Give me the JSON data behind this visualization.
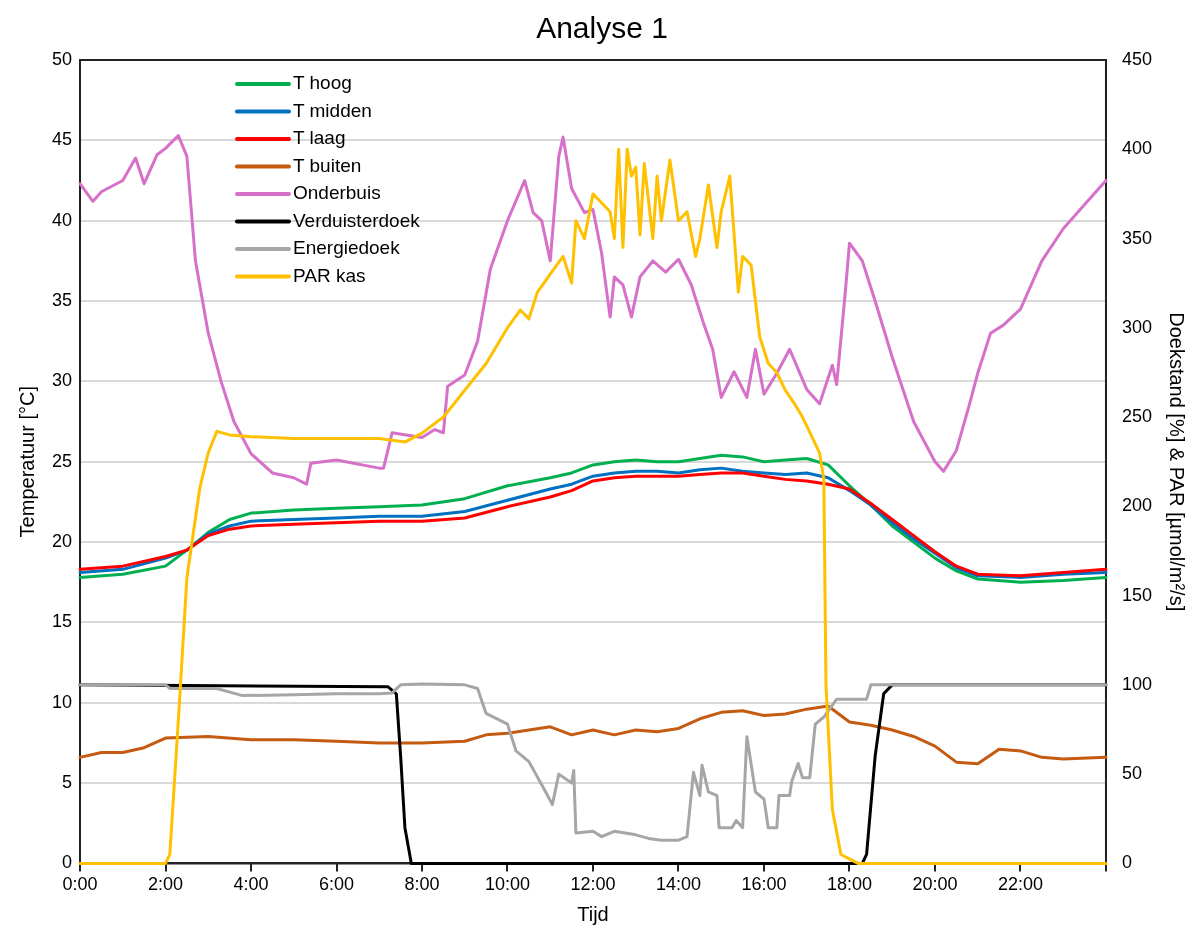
{
  "chart_data": {
    "type": "line",
    "title": "Analyse 1",
    "xlabel": "Tijd",
    "ylabel": "Temperatuur [°C]",
    "y2label": "Doekstand [%] & PAR [µmol/m²/s]",
    "xlim": [
      0,
      24
    ],
    "xticks": [
      {
        "value": 0,
        "label": "0:00"
      },
      {
        "value": 2,
        "label": "2:00"
      },
      {
        "value": 4,
        "label": "4:00"
      },
      {
        "value": 6,
        "label": "6:00"
      },
      {
        "value": 8,
        "label": "8:00"
      },
      {
        "value": 10,
        "label": "10:00"
      },
      {
        "value": 12,
        "label": "12:00"
      },
      {
        "value": 14,
        "label": "14:00"
      },
      {
        "value": 16,
        "label": "16:00"
      },
      {
        "value": 18,
        "label": "18:00"
      },
      {
        "value": 20,
        "label": "20:00"
      },
      {
        "value": 22,
        "label": "22:00"
      },
      {
        "value": 24,
        "label": null
      }
    ],
    "ylim": [
      0,
      50
    ],
    "yticks": [
      0,
      5,
      10,
      15,
      20,
      25,
      30,
      35,
      40,
      45,
      50
    ],
    "y2lim": [
      0,
      450
    ],
    "y2ticks": [
      0,
      50,
      100,
      150,
      200,
      250,
      300,
      350,
      400,
      450
    ],
    "grid": "y",
    "legend": "top left",
    "marker": "none",
    "line_style": "solid",
    "series": [
      {
        "name": "T hoog",
        "color": "#00b050",
        "x": [
          0,
          1,
          2,
          2.5,
          3,
          3.5,
          4,
          5,
          6,
          7,
          8,
          9,
          10,
          11,
          11.5,
          12,
          12.5,
          13,
          13.5,
          14,
          14.5,
          15,
          15.5,
          16,
          16.5,
          17,
          17.5,
          18,
          18.5,
          19,
          19.5,
          20,
          20.5,
          21,
          22,
          23,
          24
        ],
        "values": [
          17.8,
          18.0,
          18.5,
          19.5,
          20.6,
          21.4,
          21.8,
          22.0,
          22.1,
          22.2,
          22.3,
          22.7,
          23.5,
          24.0,
          24.3,
          24.8,
          25.0,
          25.1,
          25.0,
          25.0,
          25.2,
          25.4,
          25.3,
          25.0,
          25.1,
          25.2,
          24.8,
          23.5,
          22.3,
          21.0,
          20.0,
          19.0,
          18.2,
          17.7,
          17.5,
          17.6,
          17.8
        ]
      },
      {
        "name": "T midden",
        "color": "#0070c0",
        "x": [
          0,
          1,
          2,
          2.5,
          3,
          3.5,
          4,
          5,
          6,
          7,
          8,
          9,
          10,
          11,
          11.5,
          12,
          12.5,
          13,
          13.5,
          14,
          14.5,
          15,
          15.5,
          16,
          16.5,
          17,
          17.5,
          18,
          18.5,
          19,
          19.5,
          20,
          20.5,
          21,
          22,
          23,
          24
        ],
        "values": [
          18.1,
          18.3,
          19.0,
          19.5,
          20.5,
          21.0,
          21.3,
          21.4,
          21.5,
          21.6,
          21.6,
          21.9,
          22.6,
          23.3,
          23.6,
          24.1,
          24.3,
          24.4,
          24.4,
          24.3,
          24.5,
          24.6,
          24.4,
          24.3,
          24.2,
          24.3,
          24.0,
          23.2,
          22.3,
          21.2,
          20.2,
          19.3,
          18.4,
          17.9,
          17.8,
          18.0,
          18.1
        ]
      },
      {
        "name": "T laag",
        "color": "#ff0000",
        "x": [
          0,
          1,
          2,
          2.5,
          3,
          3.5,
          4,
          5,
          6,
          7,
          8,
          9,
          10,
          11,
          11.5,
          12,
          12.5,
          13,
          13.5,
          14,
          14.5,
          15,
          15.5,
          16,
          16.5,
          17,
          17.5,
          18,
          18.5,
          19,
          19.5,
          20,
          20.5,
          21,
          22,
          23,
          24
        ],
        "values": [
          18.3,
          18.5,
          19.1,
          19.5,
          20.4,
          20.8,
          21.0,
          21.1,
          21.2,
          21.3,
          21.3,
          21.5,
          22.2,
          22.8,
          23.2,
          23.8,
          24.0,
          24.1,
          24.1,
          24.1,
          24.2,
          24.3,
          24.3,
          24.1,
          23.9,
          23.8,
          23.6,
          23.3,
          22.4,
          21.4,
          20.4,
          19.4,
          18.5,
          18.0,
          17.9,
          18.1,
          18.3
        ]
      },
      {
        "name": "T buiten",
        "color": "#c55a11",
        "x": [
          0,
          0.5,
          1,
          1.5,
          2,
          3,
          4,
          5,
          6,
          7,
          8,
          9,
          9.5,
          10,
          10.5,
          11,
          11.5,
          12,
          12.5,
          13,
          13.5,
          14,
          14.5,
          15,
          15.5,
          16,
          16.5,
          17,
          17.5,
          18,
          18.5,
          19,
          19.5,
          20,
          20.5,
          21,
          21.5,
          22,
          22.5,
          23,
          24
        ],
        "values": [
          6.6,
          6.9,
          6.9,
          7.2,
          7.8,
          7.9,
          7.7,
          7.7,
          7.6,
          7.5,
          7.5,
          7.6,
          8.0,
          8.1,
          8.3,
          8.5,
          8.0,
          8.3,
          8.0,
          8.3,
          8.2,
          8.4,
          9.0,
          9.4,
          9.5,
          9.2,
          9.3,
          9.6,
          9.8,
          8.8,
          8.6,
          8.3,
          7.9,
          7.3,
          6.3,
          6.2,
          7.1,
          7.0,
          6.6,
          6.5,
          6.6
        ]
      },
      {
        "name": "Onderbuis",
        "color": "#d670c8",
        "x": [
          0,
          0.3,
          0.5,
          1,
          1.3,
          1.5,
          1.8,
          2,
          2.3,
          2.5,
          2.7,
          3,
          3.3,
          3.6,
          4,
          4.5,
          5,
          5.3,
          5.4,
          6,
          7,
          7.1,
          7.3,
          8,
          8.3,
          8.5,
          8.6,
          9,
          9.3,
          9.6,
          10,
          10.4,
          10.6,
          10.8,
          11,
          11.2,
          11.3,
          11.5,
          11.8,
          12,
          12.2,
          12.4,
          12.5,
          12.7,
          12.9,
          13.1,
          13.4,
          13.7,
          14,
          14.3,
          14.6,
          14.8,
          15,
          15.3,
          15.6,
          15.8,
          16,
          16.3,
          16.6,
          17,
          17.3,
          17.6,
          17.7,
          17.9,
          18,
          18.3,
          18.6,
          19,
          19.5,
          20,
          20.2,
          20.5,
          20.8,
          21,
          21.3,
          21.6,
          22,
          22.5,
          23,
          23.5,
          24
        ],
        "values": [
          42.3,
          41.2,
          41.8,
          42.5,
          43.9,
          42.3,
          44.1,
          44.5,
          45.3,
          44.0,
          37.5,
          33,
          30,
          27.5,
          25.5,
          24.3,
          24.0,
          23.6,
          24.9,
          25.1,
          24.6,
          24.6,
          26.8,
          26.5,
          27.0,
          26.8,
          29.7,
          30.4,
          32.5,
          37,
          40.0,
          42.5,
          40.5,
          40.0,
          37.5,
          44.0,
          45.2,
          42.0,
          40.5,
          40.7,
          38.0,
          34.0,
          36.5,
          36.0,
          34.0,
          36.5,
          37.5,
          36.8,
          37.6,
          36.0,
          33.5,
          32.0,
          29.0,
          30.6,
          29.0,
          32.0,
          29.2,
          30.5,
          32.0,
          29.5,
          28.6,
          31,
          29.8,
          35.5,
          38.6,
          37.5,
          35,
          31.5,
          27.5,
          25.0,
          24.4,
          25.7,
          28.5,
          30.5,
          33.0,
          33.5,
          34.5,
          37.5,
          39.5,
          41.0,
          42.5
        ]
      },
      {
        "name": "Verduisterdoek",
        "color": "#000000",
        "axis": "y2",
        "x": [
          0,
          7.2,
          7.4,
          7.5,
          7.6,
          7.75,
          18.3,
          18.4,
          18.6,
          18.8,
          19,
          24
        ],
        "values": [
          100,
          99,
          95,
          60,
          20,
          0,
          0,
          5,
          60,
          95,
          100,
          100
        ]
      },
      {
        "name": "Energiedoek",
        "color": "#a6a6a6",
        "axis": "y2",
        "x": [
          0,
          2.0,
          2.1,
          3.2,
          3.8,
          5,
          6,
          7,
          7.3,
          7.5,
          8,
          9,
          9.3,
          9.5,
          10,
          10.2,
          10.5,
          10.8,
          11.05,
          11.2,
          11.5,
          11.55,
          11.6,
          12,
          12.2,
          12.5,
          13,
          13.3,
          13.6,
          14,
          14.2,
          14.35,
          14.5,
          14.55,
          14.7,
          14.9,
          14.95,
          15.25,
          15.35,
          15.5,
          15.6,
          15.8,
          16.0,
          16.1,
          16.3,
          16.35,
          16.6,
          16.65,
          16.8,
          16.9,
          17.07,
          17.2,
          17.4,
          17.7,
          18.4,
          18.5,
          24
        ],
        "values": [
          100,
          100,
          98,
          98,
          94,
          94.5,
          95,
          95,
          95.5,
          100,
          100.5,
          100,
          98,
          84,
          78,
          63,
          57,
          44,
          33,
          50,
          45,
          52,
          17,
          18,
          15,
          18,
          16,
          14,
          13,
          13,
          15,
          51,
          38,
          55,
          40,
          38,
          20,
          20,
          24,
          20,
          71,
          40,
          36,
          20,
          20,
          38,
          38,
          46,
          56,
          48,
          48,
          78,
          82,
          92,
          92,
          100,
          100
        ]
      },
      {
        "name": "PAR kas",
        "color": "#ffc000",
        "axis": "y2",
        "x": [
          0,
          2,
          2.1,
          2.3,
          2.5,
          2.8,
          3,
          3.2,
          3.5,
          4,
          5,
          6,
          7,
          7.6,
          8,
          8.5,
          9,
          9.5,
          10,
          10.3,
          10.5,
          10.7,
          11,
          11.3,
          11.5,
          11.6,
          11.8,
          12,
          12.2,
          12.4,
          12.5,
          12.6,
          12.7,
          12.8,
          12.9,
          13,
          13.1,
          13.2,
          13.4,
          13.5,
          13.6,
          13.8,
          14,
          14.2,
          14.4,
          14.5,
          14.7,
          14.9,
          15,
          15.2,
          15.4,
          15.5,
          15.7,
          15.9,
          16.1,
          16.3,
          16.5,
          16.7,
          16.9,
          17.1,
          17.3,
          17.4,
          17.45,
          17.6,
          17.8,
          18.2,
          24
        ],
        "values": [
          0,
          0,
          5,
          80,
          160,
          210,
          230,
          242,
          240,
          239,
          238,
          238,
          238,
          236,
          241,
          250,
          265,
          280,
          300,
          310,
          305,
          320,
          330,
          340,
          325,
          360,
          350,
          375,
          370,
          365,
          350,
          400,
          345,
          400,
          385,
          390,
          352,
          392,
          350,
          385,
          360,
          394,
          360,
          365,
          340,
          350,
          380,
          345,
          365,
          385,
          320,
          340,
          335,
          295,
          280,
          275,
          265,
          258,
          250,
          240,
          230,
          215,
          100,
          30,
          5,
          0,
          0
        ]
      }
    ]
  }
}
